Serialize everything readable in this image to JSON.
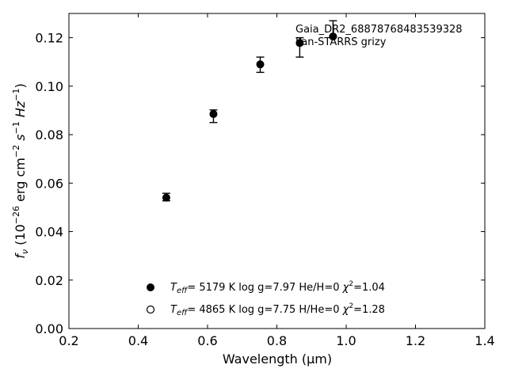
{
  "chart_data": {
    "type": "scatter",
    "annotations": [
      "Gaia_DR2_68878768483539328",
      "Pan-STARRS grizy"
    ],
    "xlim": [
      0.2,
      1.4
    ],
    "ylim": [
      0.0,
      0.13
    ],
    "xticks": [
      "0.2",
      "0.4",
      "0.6",
      "0.8",
      "1.0",
      "1.2",
      "1.4"
    ],
    "yticks": [
      "0.00",
      "0.02",
      "0.04",
      "0.06",
      "0.08",
      "0.10",
      "0.12"
    ],
    "xlabel": "Wavelength (μm)",
    "ylabel": {
      "base": "f",
      "sub": "ν",
      "text": " (10",
      "exp": "−26",
      "rest": " erg cm",
      "e2": "−2",
      "s": " s",
      "e3": "−1",
      "hz": " Hz",
      "e4": "−1",
      "close": ")"
    },
    "grid": false,
    "legend_position": "bottom-center",
    "series": [
      {
        "marker": "filled-circle",
        "points": [
          {
            "x": 0.481,
            "y": 0.054,
            "yerr_low": 0.0013,
            "yerr_high": 0.0018
          },
          {
            "x": 0.617,
            "y": 0.0885,
            "yerr_low": 0.0035,
            "yerr_high": 0.0017
          },
          {
            "x": 0.752,
            "y": 0.109,
            "yerr_low": 0.0033,
            "yerr_high": 0.003
          },
          {
            "x": 0.866,
            "y": 0.1178,
            "yerr_low": 0.0058,
            "yerr_high": 0.0022
          },
          {
            "x": 0.962,
            "y": 0.1205,
            "yerr_low": 0.0,
            "yerr_high": 0.0065
          }
        ]
      }
    ],
    "legend": [
      {
        "marker": "filled-circle",
        "teff_label": "T",
        "teff_sub": "eff",
        "values": "=  5179 K  log g=7.97  He/H=0  ",
        "chi": "χ",
        "chi_exp": "2",
        "chi_val": "=1.04"
      },
      {
        "marker": "open-circle",
        "teff_label": "T",
        "teff_sub": "eff",
        "values": "=  4865 K  log g=7.75  H/He=0  ",
        "chi": "χ",
        "chi_exp": "2",
        "chi_val": "=1.28"
      }
    ]
  }
}
